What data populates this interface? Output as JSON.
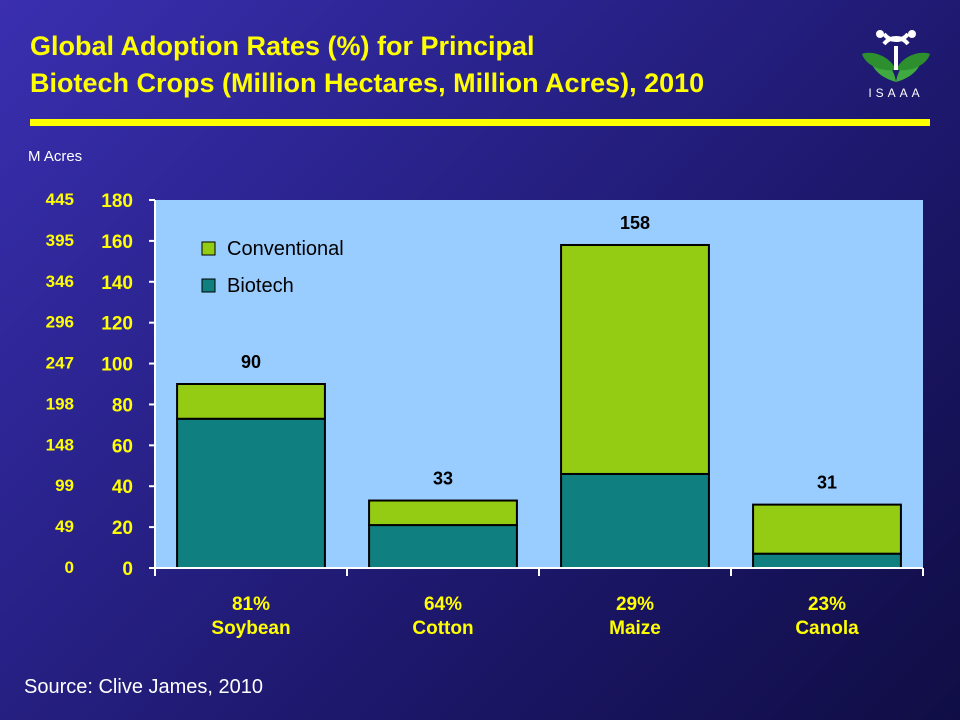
{
  "title_line1": "Global Adoption Rates (%) for Principal",
  "title_line2": "Biotech Crops (Million Hectares, Million Acres), 2010",
  "logo_text": "ISAAA",
  "left_axis_label": "M Acres",
  "source": "Source: Clive James, 2010",
  "colors": {
    "conventional": "#94cc14",
    "biotech": "#0f7f7f",
    "plot_bg": "#99ccff",
    "axis_text": "#ffff00",
    "category_text": "#ffff00",
    "value_text": "#000000"
  },
  "chart_data": {
    "type": "bar",
    "stacked": true,
    "categories": [
      "Soybean",
      "Cotton",
      "Maize",
      "Canola"
    ],
    "adoption_rates": [
      "81%",
      "64%",
      "29%",
      "23%"
    ],
    "series": [
      {
        "name": "Biotech",
        "values": [
          73,
          21,
          46,
          7
        ]
      },
      {
        "name": "Conventional",
        "values": [
          17,
          12,
          112,
          24
        ]
      }
    ],
    "totals": [
      90,
      33,
      158,
      31
    ],
    "total_labels": [
      "90",
      "33",
      "158",
      "31"
    ],
    "ylim": [
      0,
      180
    ],
    "yticks": [
      "0",
      "20",
      "40",
      "60",
      "80",
      "100",
      "120",
      "140",
      "160",
      "180"
    ],
    "secondary_yticks": [
      "0",
      "49",
      "99",
      "148",
      "198",
      "247",
      "296",
      "346",
      "395",
      "445"
    ],
    "legend": [
      "Conventional",
      "Biotech"
    ],
    "legend_position": "top-left",
    "grid": false
  }
}
